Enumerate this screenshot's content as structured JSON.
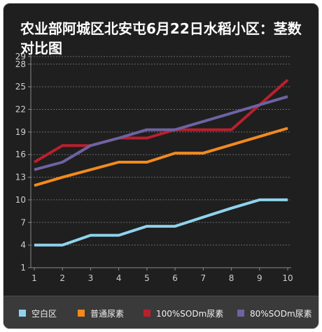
{
  "chart_data": {
    "type": "line",
    "title": "农业部阿城区北安屯6月22日水稻小区：茎数对比图",
    "xlabel": "",
    "ylabel": "",
    "x": [
      1,
      2,
      3,
      4,
      5,
      6,
      7,
      8,
      9,
      10
    ],
    "yticks": [
      1,
      4,
      7,
      10,
      13,
      16,
      19,
      22,
      25,
      28,
      29
    ],
    "ylim": [
      1,
      29
    ],
    "xlim": [
      1,
      10
    ],
    "grid": true,
    "legend_position": "bottom",
    "series": [
      {
        "name": "空白区",
        "color": "#8fd3ec",
        "values": [
          4,
          4,
          5.3,
          5.3,
          6.5,
          6.5,
          7.7,
          8.9,
          10,
          10
        ]
      },
      {
        "name": "普通尿素",
        "color": "#f28a1e",
        "values": [
          11.9,
          13,
          14,
          15,
          15,
          16.2,
          16.2,
          17.3,
          18.4,
          19.5
        ]
      },
      {
        "name": "100%SODm尿素",
        "color": "#b9202d",
        "values": [
          15,
          17.2,
          17.2,
          18.2,
          18.2,
          19.3,
          19.3,
          19.3,
          22.6,
          25.9
        ]
      },
      {
        "name": "80%SODm尿素",
        "color": "#6d63a2",
        "values": [
          14,
          15,
          17.2,
          18.2,
          19.3,
          19.3,
          20.4,
          21.5,
          22.6,
          23.7
        ]
      }
    ]
  }
}
